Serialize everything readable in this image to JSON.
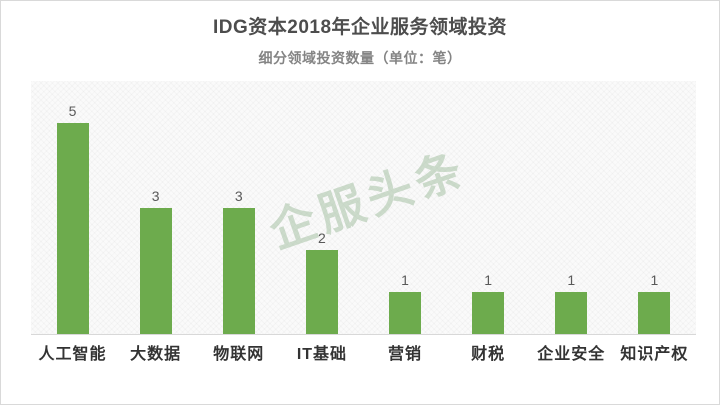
{
  "page": {
    "title": "IDG资本2018年企业服务领域投资",
    "subtitle": "细分领域投资数量（单位：笔）"
  },
  "watermark": {
    "text": "企服头条"
  },
  "colors": {
    "bar": "#6dab4d",
    "title_text": "#4d4d4d",
    "subtitle_text": "#848484",
    "value_label": "#595959",
    "category_label": "#333333",
    "axis_line": "#d8d8d8",
    "watermark": "rgba(157,187,155,0.5)"
  },
  "chart_data": {
    "type": "bar",
    "title": "IDG资本2018年企业服务领域投资",
    "subtitle": "细分领域投资数量（单位：笔）",
    "categories": [
      "人工智能",
      "大数据",
      "物联网",
      "IT基础",
      "营销",
      "财税",
      "企业安全",
      "知识产权"
    ],
    "values": [
      5,
      3,
      3,
      2,
      1,
      1,
      1,
      1
    ],
    "xlabel": "",
    "ylabel": "",
    "ylim": [
      0,
      6
    ],
    "grid": false,
    "legend": "none",
    "data_labels": true,
    "bar_color": "#6dab4d"
  }
}
